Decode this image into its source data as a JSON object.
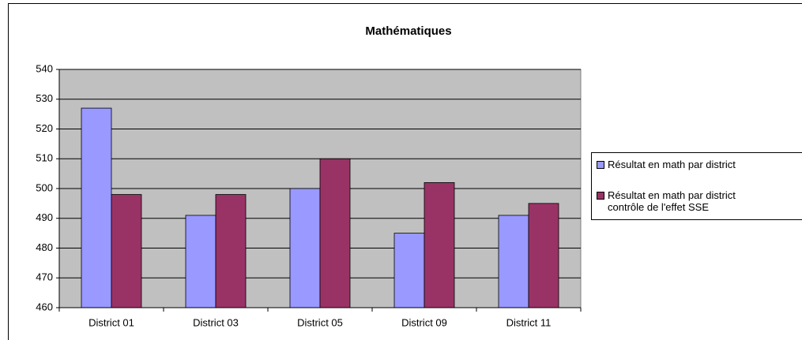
{
  "chart_data": {
    "type": "bar",
    "title": "Mathématiques",
    "categories": [
      "District 01",
      "District 03",
      "District 05",
      "District 09",
      "District 11"
    ],
    "series": [
      {
        "name": "Résultat en math par district",
        "color": "#9999ff",
        "values": [
          527,
          491,
          500,
          485,
          491
        ]
      },
      {
        "name": "Résultat en math par district\ncontrôle de l'effet SSE",
        "color": "#993366",
        "values": [
          498,
          498,
          510,
          502,
          495
        ]
      }
    ],
    "ylim": [
      460,
      540
    ],
    "yticks": [
      460,
      470,
      480,
      490,
      500,
      510,
      520,
      530,
      540
    ],
    "grid": true,
    "plot_background": "#c0c0c0",
    "legend": "right"
  }
}
